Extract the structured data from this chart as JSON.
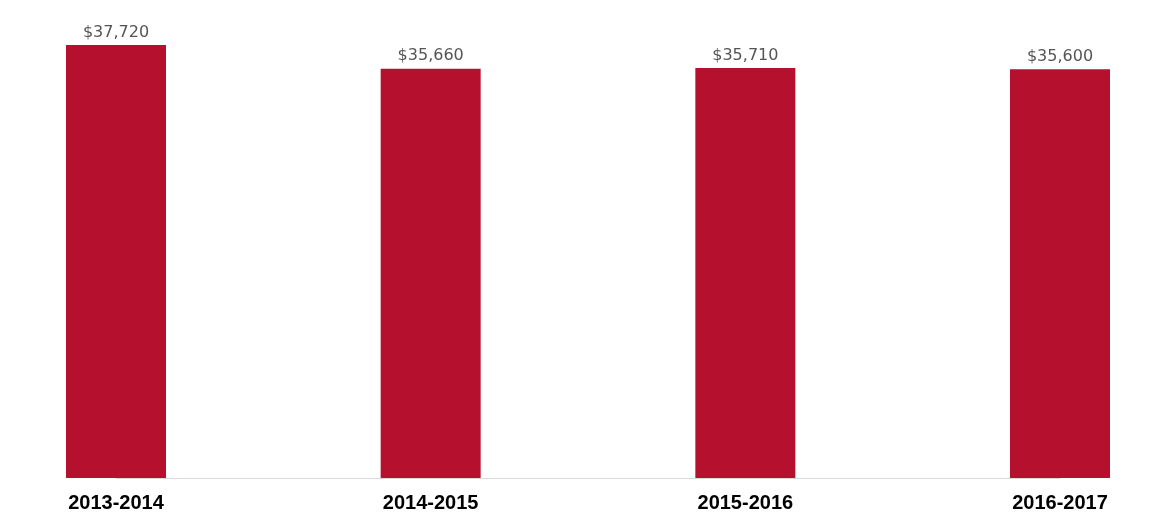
{
  "chart_data": {
    "type": "bar",
    "categories": [
      "2013-2014",
      "2014-2015",
      "2015-2016",
      "2016-2017"
    ],
    "values": [
      37720,
      35660,
      35710,
      35600
    ],
    "value_labels": [
      "$37,720",
      "$35,660",
      "$35,710",
      "$35,600"
    ],
    "color": "#b5112f"
  }
}
